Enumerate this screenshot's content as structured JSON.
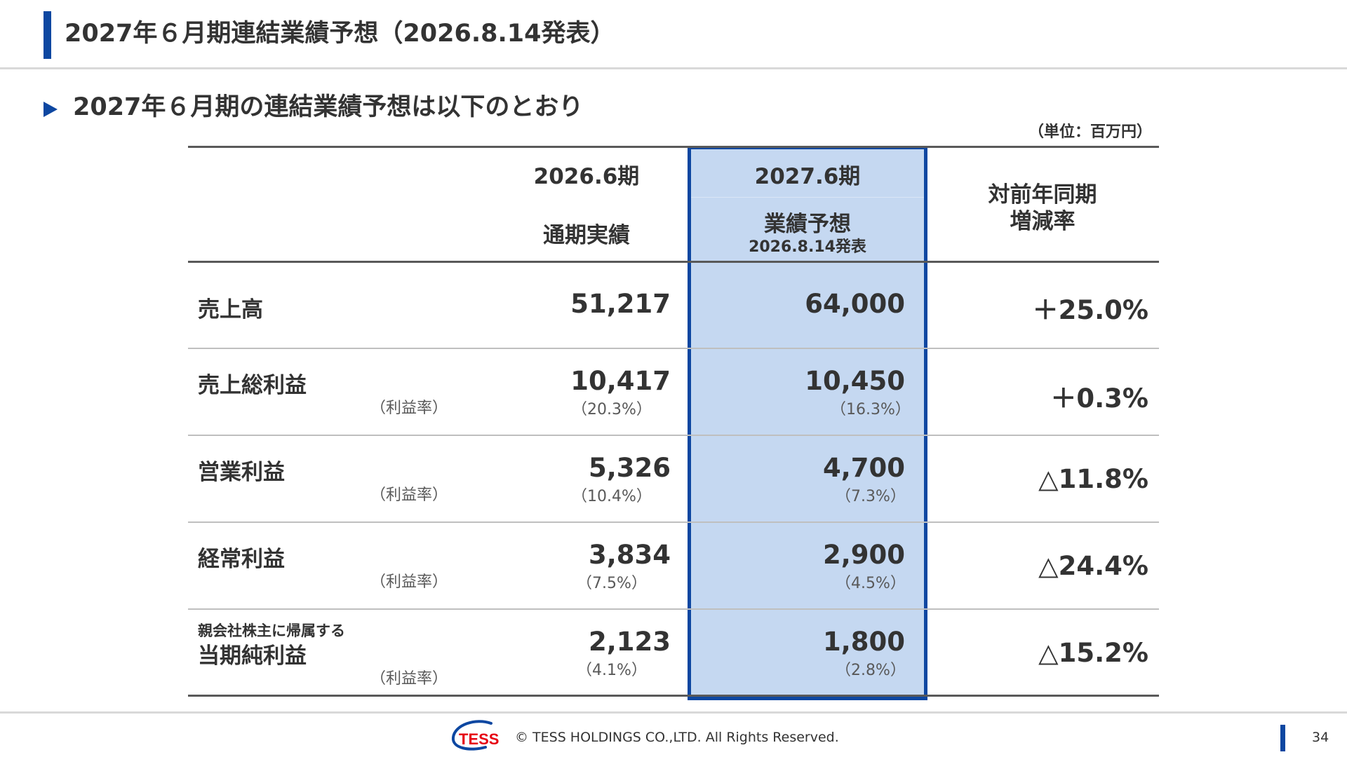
{
  "header": {
    "title": "2027年６月期連結業績予想（2026.8.14発表）"
  },
  "subtitle": "2027年６月期の連結業績予想は以下のとおり",
  "unit": "（単位：百万円）",
  "table": {
    "columns": {
      "actual": {
        "period": "2026.6期",
        "label": "通期実績"
      },
      "forecast": {
        "period": "2027.6期",
        "label": "業績予想",
        "note": "2026.8.14発表"
      },
      "change": {
        "line1": "対前年同期",
        "line2": "増減率"
      }
    },
    "rows": [
      {
        "label": "売上高",
        "actual": "51,217",
        "forecast": "64,000",
        "change": "＋25.0%"
      },
      {
        "label": "売上総利益",
        "ratio_label": "（利益率）",
        "actual": "10,417",
        "actual_ratio": "（20.3%）",
        "forecast": "10,450",
        "forecast_ratio": "（16.3%）",
        "change": "＋0.3%"
      },
      {
        "label": "営業利益",
        "ratio_label": "（利益率）",
        "actual": "5,326",
        "actual_ratio": "（10.4%）",
        "forecast": "4,700",
        "forecast_ratio": "（7.3%）",
        "change": "△11.8%"
      },
      {
        "label": "経常利益",
        "ratio_label": "（利益率）",
        "actual": "3,834",
        "actual_ratio": "（7.5%）",
        "forecast": "2,900",
        "forecast_ratio": "（4.5%）",
        "change": "△24.4%"
      },
      {
        "sublabel": "親会社株主に帰属する",
        "label": "当期純利益",
        "ratio_label": "（利益率）",
        "actual": "2,123",
        "actual_ratio": "（4.1%）",
        "forecast": "1,800",
        "forecast_ratio": "（2.8%）",
        "change": "△15.2%"
      }
    ]
  },
  "footer": {
    "logo_text": "TESS",
    "copyright": "© TESS HOLDINGS CO.,LTD. All Rights Reserved.",
    "page_number": "34"
  },
  "colors": {
    "accent": "#0d47a1",
    "highlight": "#c5d8f1",
    "logo_red": "#e60012"
  }
}
